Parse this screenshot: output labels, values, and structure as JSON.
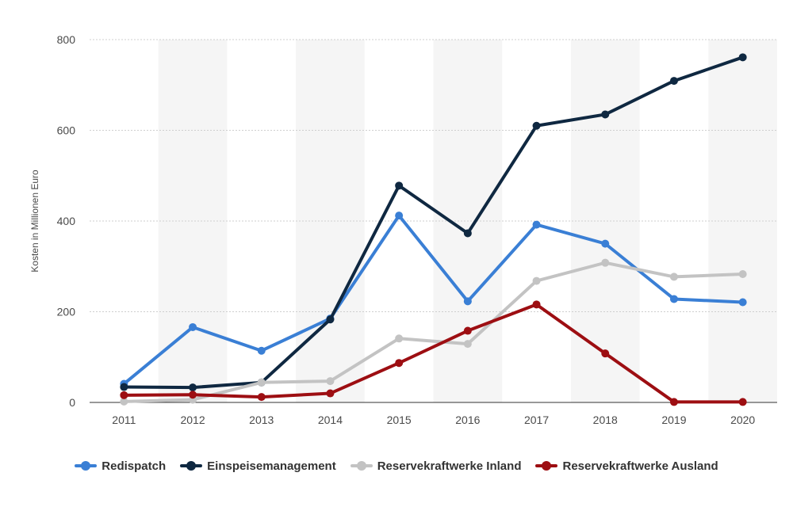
{
  "chart_data": {
    "type": "line",
    "title": "",
    "xlabel": "",
    "ylabel": "Kosten in Millionen Euro",
    "categories": [
      "2011",
      "2012",
      "2013",
      "2014",
      "2015",
      "2016",
      "2017",
      "2018",
      "2019",
      "2020"
    ],
    "ylim": [
      0,
      800
    ],
    "yticks": [
      "0",
      "200",
      "400",
      "600",
      "800"
    ],
    "grid": true,
    "legend_position": "bottom-center",
    "series": [
      {
        "name": "Redispatch",
        "color": "#3a7fd5",
        "values": [
          41,
          166,
          114,
          185,
          412,
          223,
          392,
          350,
          228,
          221
        ]
      },
      {
        "name": "Einspeisemanagement",
        "color": "#0f2841",
        "values": [
          34,
          33,
          44,
          183,
          478,
          373,
          610,
          635,
          709,
          761
        ]
      },
      {
        "name": "Reservekraftwerke Inland",
        "color": "#c3c3c3",
        "values": [
          2,
          6,
          44,
          47,
          141,
          129,
          268,
          308,
          277,
          283
        ]
      },
      {
        "name": "Reservekraftwerke Ausland",
        "color": "#9d0e12",
        "values": [
          16,
          17,
          12,
          20,
          87,
          158,
          216,
          108,
          1,
          1
        ]
      }
    ]
  }
}
